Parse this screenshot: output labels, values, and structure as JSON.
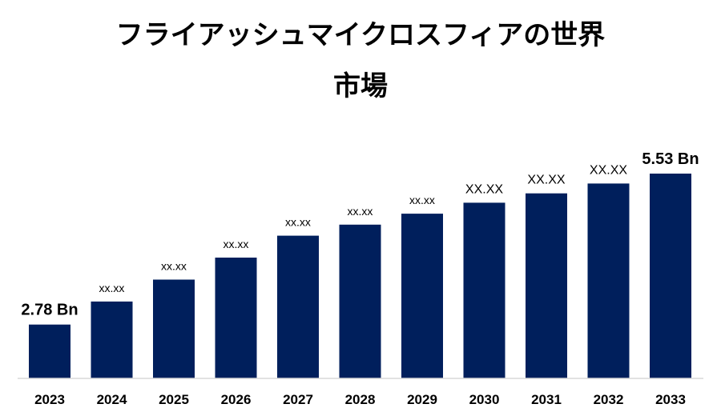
{
  "chart_data": {
    "type": "bar",
    "title_lines": [
      "フライアッシュマイクロスフィアの世界",
      "市場"
    ],
    "categories": [
      "2023",
      "2024",
      "2025",
      "2026",
      "2027",
      "2028",
      "2029",
      "2030",
      "2031",
      "2032",
      "2033"
    ],
    "values": [
      2.78,
      3.2,
      3.6,
      4.0,
      4.4,
      4.6,
      4.8,
      5.0,
      5.17,
      5.35,
      5.53
    ],
    "data_labels": [
      "2.78 Bn",
      "xx.xx",
      "xx.xx",
      "xx.xx",
      "xx.xx",
      "xx.xx",
      "xx.xx",
      "XX.XX",
      "XX.XX",
      "XX.XX",
      "5.53 Bn"
    ],
    "bar_color": "#001f5c",
    "ylim": [
      1.8,
      5.53
    ],
    "grid": false,
    "legend": false
  }
}
